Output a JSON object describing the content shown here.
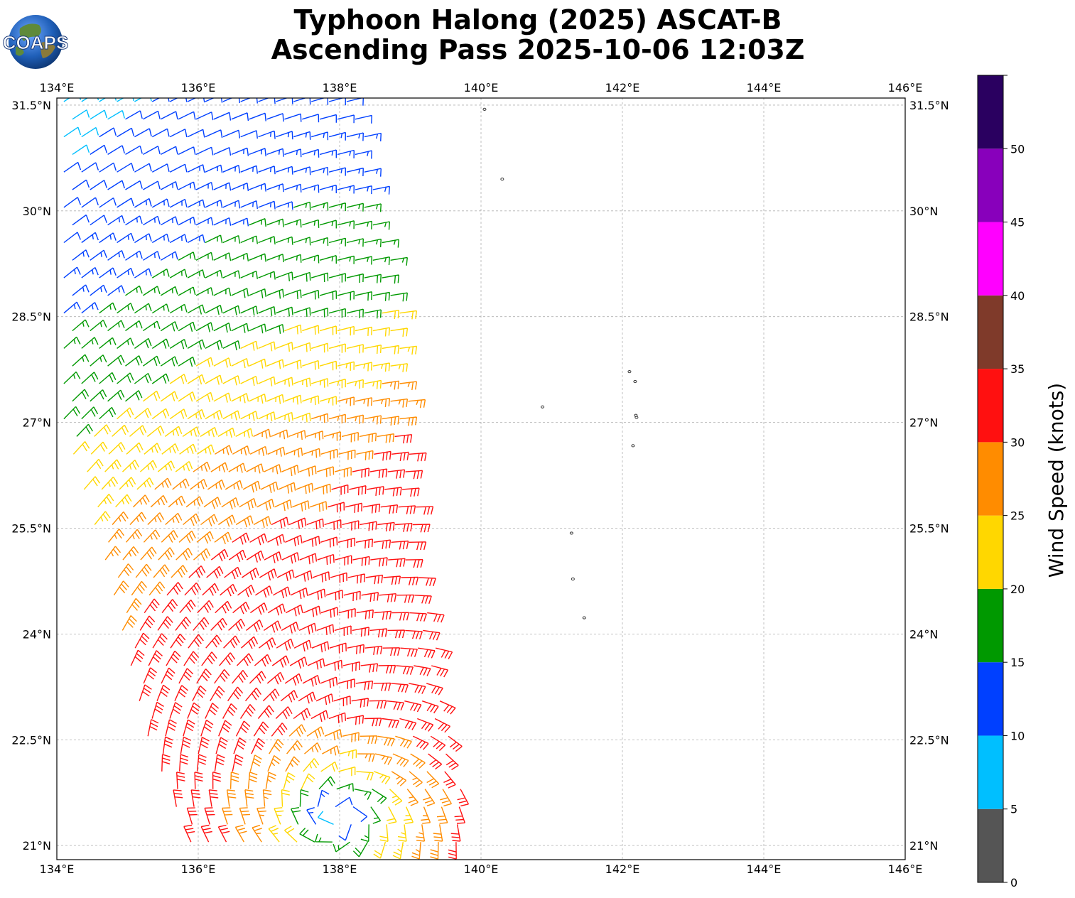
{
  "title": {
    "line1": "Typhoon Halong (2025) ASCAT-B",
    "line2": "Ascending Pass 2025-10-06 12:03Z"
  },
  "logo": {
    "text": "COAPS",
    "icon": "globe-icon"
  },
  "map": {
    "lon_range": [
      134,
      146
    ],
    "lat_range": [
      20.8,
      31.6
    ],
    "lon_ticks": [
      "134°E",
      "136°E",
      "138°E",
      "140°E",
      "142°E",
      "144°E",
      "146°E"
    ],
    "lat_ticks": [
      "21°N",
      "22.5°N",
      "24°N",
      "25.5°N",
      "27°N",
      "28.5°N",
      "30°N",
      "31.5°N"
    ],
    "grid": true,
    "storm_center": {
      "lon": 138.0,
      "lat": 21.4
    },
    "swath": {
      "west_edge": [
        [
          134.0,
          31.6
        ],
        [
          134.0,
          27.0
        ],
        [
          134.6,
          25.0
        ],
        [
          135.2,
          22.5
        ],
        [
          135.9,
          20.8
        ]
      ],
      "east_edge": [
        [
          138.25,
          31.6
        ],
        [
          138.9,
          28.5
        ],
        [
          139.1,
          25.5
        ],
        [
          139.5,
          23.0
        ],
        [
          139.9,
          20.8
        ]
      ]
    },
    "islands": [
      {
        "lon": 140.05,
        "lat": 31.44
      },
      {
        "lon": 140.3,
        "lat": 30.45
      },
      {
        "lon": 142.1,
        "lat": 27.72
      },
      {
        "lon": 142.18,
        "lat": 27.58
      },
      {
        "lon": 140.87,
        "lat": 27.22
      },
      {
        "lon": 142.19,
        "lat": 27.1
      },
      {
        "lon": 142.2,
        "lat": 27.07
      },
      {
        "lon": 142.15,
        "lat": 26.67
      },
      {
        "lon": 141.28,
        "lat": 25.43
      },
      {
        "lon": 141.3,
        "lat": 24.78
      },
      {
        "lon": 141.46,
        "lat": 24.23
      }
    ]
  },
  "colorbar": {
    "label": "Wind Speed (knots)",
    "ticks": [
      "0",
      "5",
      "10",
      "15",
      "20",
      "25",
      "30",
      "35",
      "40",
      "45",
      "50"
    ],
    "bins": [
      {
        "min": 0,
        "max": 5,
        "color": "#555555"
      },
      {
        "min": 5,
        "max": 10,
        "color": "#00bfff"
      },
      {
        "min": 10,
        "max": 15,
        "color": "#0040ff"
      },
      {
        "min": 15,
        "max": 20,
        "color": "#009900"
      },
      {
        "min": 20,
        "max": 25,
        "color": "#ffd700"
      },
      {
        "min": 25,
        "max": 30,
        "color": "#ff8c00"
      },
      {
        "min": 30,
        "max": 35,
        "color": "#ff1010"
      },
      {
        "min": 35,
        "max": 40,
        "color": "#7f3a2a"
      },
      {
        "min": 40,
        "max": 45,
        "color": "#ff00ff"
      },
      {
        "min": 45,
        "max": 50,
        "color": "#8800bb"
      },
      {
        "min": 50,
        "max": 55,
        "color": "#2a0060"
      }
    ]
  }
}
